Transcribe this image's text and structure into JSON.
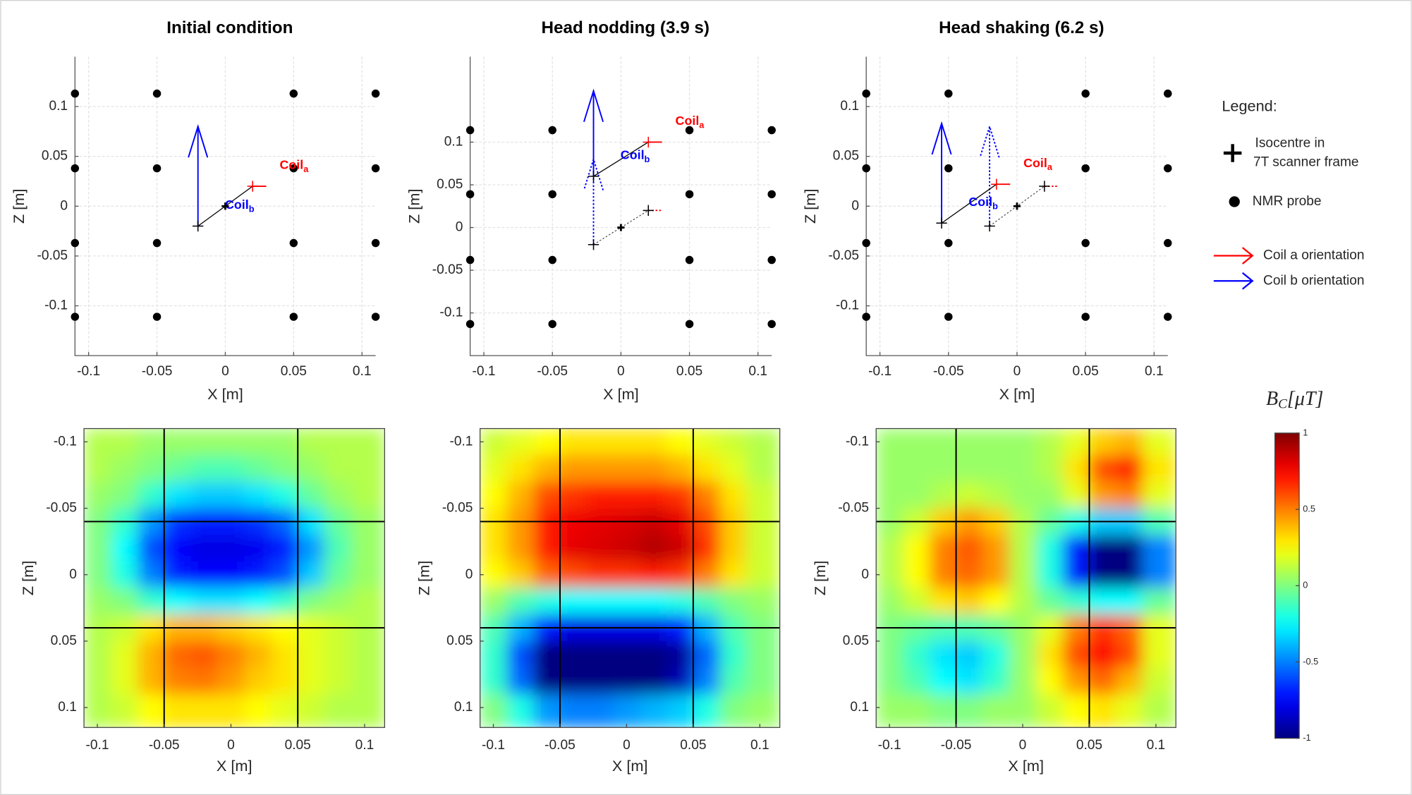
{
  "chart_data": [
    {
      "type": "scatter",
      "title": "Initial condition",
      "xlabel": "X [m]",
      "ylabel": "Z [m]",
      "xlim": [
        -0.11,
        0.11
      ],
      "ylim": [
        -0.15,
        0.15
      ],
      "xticks": [
        -0.1,
        -0.05,
        0,
        0.05,
        0.1
      ],
      "yticks": [
        -0.1,
        -0.05,
        0,
        0.05,
        0.1
      ],
      "grid": true,
      "probes": {
        "color": "#000000",
        "x": [
          -0.11,
          -0.05,
          0.05,
          0.11,
          -0.11,
          -0.05,
          0.05,
          0.11,
          -0.11,
          -0.05,
          0.05,
          0.11,
          -0.11,
          -0.05,
          0.05,
          0.11
        ],
        "y": [
          0.113,
          0.113,
          0.113,
          0.113,
          0.038,
          0.038,
          0.038,
          0.038,
          -0.037,
          -0.037,
          -0.037,
          -0.037,
          -0.111,
          -0.111,
          -0.111,
          -0.111
        ]
      },
      "isocentre": {
        "color": "#000000",
        "x": 0,
        "y": 0
      },
      "coils": [
        {
          "label": "Coil",
          "sub": "a",
          "color": "#ff0000",
          "marker_color": "#ff0000",
          "arrowhead": false,
          "x": 0.02,
          "y": 0.02,
          "dx": 0.01,
          "dy": 0
        },
        {
          "label": "Coil",
          "sub": "b",
          "color": "#0000ff",
          "marker_color": "#000000",
          "arrowhead": true,
          "x": -0.02,
          "y": -0.02,
          "dx": 0,
          "dy": 0.1
        }
      ],
      "previous": []
    },
    {
      "type": "scatter",
      "title": "Head nodding (3.9 s)",
      "xlabel": "X [m]",
      "ylabel": "Z [m]",
      "xlim": [
        -0.11,
        0.11
      ],
      "ylim": [
        -0.15,
        0.2
      ],
      "xticks": [
        -0.1,
        -0.05,
        0,
        0.05,
        0.1
      ],
      "yticks": [
        -0.1,
        -0.05,
        0,
        0.05,
        0.1
      ],
      "grid": true,
      "probes": {
        "color": "#000000",
        "x": [
          -0.11,
          -0.05,
          0.05,
          0.11,
          -0.11,
          -0.05,
          0.05,
          0.11,
          -0.11,
          -0.05,
          0.05,
          0.11,
          -0.11,
          -0.05,
          0.05,
          0.11
        ],
        "y": [
          0.114,
          0.114,
          0.114,
          0.114,
          0.039,
          0.039,
          0.039,
          0.039,
          -0.038,
          -0.038,
          -0.038,
          -0.038,
          -0.113,
          -0.113,
          -0.113,
          -0.113
        ]
      },
      "isocentre": {
        "color": "#000000",
        "x": 0,
        "y": 0
      },
      "coils": [
        {
          "label": "Coil",
          "sub": "a",
          "color": "#ff0000",
          "marker_color": "#ff0000",
          "arrowhead": false,
          "x": 0.02,
          "y": 0.1,
          "dx": 0.01,
          "dy": 0
        },
        {
          "label": "Coil",
          "sub": "b",
          "color": "#0000ff",
          "marker_color": "#000000",
          "arrowhead": true,
          "x": -0.02,
          "y": 0.06,
          "dx": 0,
          "dy": 0.1
        }
      ],
      "previous": [
        {
          "color": "#ff0000",
          "marker_color": "#000000",
          "arrowhead": false,
          "x": 0.02,
          "y": 0.02,
          "dx": 0.01,
          "dy": 0
        },
        {
          "color": "#0000ff",
          "marker_color": "#000000",
          "arrowhead": true,
          "x": -0.02,
          "y": -0.02,
          "dx": 0,
          "dy": 0.1
        }
      ]
    },
    {
      "type": "scatter",
      "title": "Head shaking (6.2 s)",
      "xlabel": "X [m]",
      "ylabel": "Z [m]",
      "xlim": [
        -0.11,
        0.11
      ],
      "ylim": [
        -0.15,
        0.15
      ],
      "xticks": [
        -0.1,
        -0.05,
        0,
        0.05,
        0.1
      ],
      "yticks": [
        -0.1,
        -0.05,
        0,
        0.05,
        0.1
      ],
      "grid": true,
      "probes": {
        "color": "#000000",
        "x": [
          -0.11,
          -0.05,
          0.05,
          0.11,
          -0.11,
          -0.05,
          0.05,
          0.11,
          -0.11,
          -0.05,
          0.05,
          0.11,
          -0.11,
          -0.05,
          0.05,
          0.11
        ],
        "y": [
          0.113,
          0.113,
          0.113,
          0.113,
          0.038,
          0.038,
          0.038,
          0.038,
          -0.037,
          -0.037,
          -0.037,
          -0.037,
          -0.111,
          -0.111,
          -0.111,
          -0.111
        ]
      },
      "isocentre": {
        "color": "#000000",
        "x": 0,
        "y": 0
      },
      "coils": [
        {
          "label": "Coil",
          "sub": "a",
          "color": "#ff0000",
          "marker_color": "#ff0000",
          "arrowhead": false,
          "x": -0.015,
          "y": 0.022,
          "dx": 0.01,
          "dy": 0
        },
        {
          "label": "Coil",
          "sub": "b",
          "color": "#0000ff",
          "marker_color": "#000000",
          "arrowhead": true,
          "x": -0.055,
          "y": -0.017,
          "dx": 0,
          "dy": 0.1
        }
      ],
      "previous": [
        {
          "color": "#ff0000",
          "marker_color": "#000000",
          "arrowhead": false,
          "x": 0.02,
          "y": 0.02,
          "dx": 0.01,
          "dy": 0
        },
        {
          "color": "#0000ff",
          "marker_color": "#000000",
          "arrowhead": true,
          "x": -0.02,
          "y": -0.02,
          "dx": 0,
          "dy": 0.1
        }
      ]
    },
    {
      "type": "heatmap",
      "xlabel": "X [m]",
      "ylabel": "Z [m]",
      "y_reversed": true,
      "xlim": [
        -0.11,
        0.115
      ],
      "ylim": [
        -0.11,
        0.115
      ],
      "xticks": [
        -0.1,
        -0.05,
        0,
        0.05,
        0.1
      ],
      "yticks": [
        -0.1,
        -0.05,
        0,
        0.05,
        0.1
      ],
      "lines": {
        "color": "#000000",
        "x": [
          -0.05,
          0.05
        ],
        "y": [
          -0.04,
          0.04
        ]
      },
      "x": [
        -0.1,
        -0.08,
        -0.06,
        -0.04,
        -0.02,
        0,
        0.02,
        0.04,
        0.06,
        0.08,
        0.1
      ],
      "y": [
        -0.1,
        -0.08,
        -0.06,
        -0.04,
        -0.02,
        0,
        0.02,
        0.04,
        0.06,
        0.08,
        0.1
      ],
      "z": [
        [
          0.1,
          0.1,
          0.05,
          0.05,
          0.05,
          0.05,
          0.05,
          0.05,
          0.1,
          0.1,
          0.1
        ],
        [
          0.1,
          0.05,
          0,
          -0.05,
          -0.1,
          -0.1,
          -0.05,
          0,
          0.05,
          0.1,
          0.1
        ],
        [
          0.05,
          0,
          -0.15,
          -0.3,
          -0.35,
          -0.35,
          -0.3,
          -0.2,
          -0.05,
          0.05,
          0.1
        ],
        [
          0,
          -0.15,
          -0.45,
          -0.65,
          -0.7,
          -0.7,
          -0.65,
          -0.55,
          -0.3,
          -0.05,
          0.05
        ],
        [
          0,
          -0.25,
          -0.6,
          -0.75,
          -0.8,
          -0.8,
          -0.78,
          -0.7,
          -0.45,
          -0.1,
          0.05
        ],
        [
          0,
          -0.2,
          -0.5,
          -0.7,
          -0.75,
          -0.75,
          -0.7,
          -0.6,
          -0.35,
          -0.05,
          0.05
        ],
        [
          0.05,
          0,
          -0.15,
          -0.25,
          -0.3,
          -0.3,
          -0.25,
          -0.15,
          0,
          0.05,
          0.1
        ],
        [
          0.1,
          0.15,
          0.3,
          0.4,
          0.4,
          0.35,
          0.3,
          0.25,
          0.2,
          0.15,
          0.1
        ],
        [
          0.1,
          0.2,
          0.4,
          0.55,
          0.58,
          0.5,
          0.4,
          0.3,
          0.2,
          0.15,
          0.1
        ],
        [
          0.1,
          0.2,
          0.4,
          0.5,
          0.52,
          0.45,
          0.35,
          0.3,
          0.2,
          0.15,
          0.1
        ],
        [
          0.1,
          0.15,
          0.25,
          0.3,
          0.3,
          0.3,
          0.25,
          0.2,
          0.15,
          0.1,
          0.1
        ]
      ]
    },
    {
      "type": "heatmap",
      "xlabel": "X [m]",
      "ylabel": "Z [m]",
      "y_reversed": true,
      "xlim": [
        -0.11,
        0.115
      ],
      "ylim": [
        -0.11,
        0.115
      ],
      "xticks": [
        -0.1,
        -0.05,
        0,
        0.05,
        0.1
      ],
      "yticks": [
        -0.1,
        -0.05,
        0,
        0.05,
        0.1
      ],
      "lines": {
        "color": "#000000",
        "x": [
          -0.05,
          0.05
        ],
        "y": [
          -0.04,
          0.04
        ]
      },
      "x": [
        -0.1,
        -0.08,
        -0.06,
        -0.04,
        -0.02,
        0,
        0.02,
        0.04,
        0.06,
        0.08,
        0.1
      ],
      "y": [
        -0.1,
        -0.08,
        -0.06,
        -0.04,
        -0.02,
        0,
        0.02,
        0.04,
        0.06,
        0.08,
        0.1
      ],
      "z": [
        [
          0.15,
          0.2,
          0.25,
          0.3,
          0.3,
          0.3,
          0.3,
          0.25,
          0.2,
          0.15,
          0.1
        ],
        [
          0.2,
          0.3,
          0.4,
          0.45,
          0.45,
          0.45,
          0.45,
          0.4,
          0.3,
          0.2,
          0.1
        ],
        [
          0.25,
          0.4,
          0.6,
          0.65,
          0.7,
          0.7,
          0.7,
          0.65,
          0.5,
          0.3,
          0.15
        ],
        [
          0.3,
          0.45,
          0.7,
          0.78,
          0.8,
          0.82,
          0.85,
          0.8,
          0.6,
          0.35,
          0.15
        ],
        [
          0.3,
          0.45,
          0.7,
          0.8,
          0.82,
          0.85,
          0.9,
          0.85,
          0.65,
          0.35,
          0.15
        ],
        [
          0.25,
          0.35,
          0.55,
          0.6,
          0.65,
          0.65,
          0.7,
          0.65,
          0.5,
          0.3,
          0.15
        ],
        [
          0.05,
          -0.1,
          -0.2,
          -0.25,
          -0.25,
          -0.25,
          -0.25,
          -0.2,
          -0.1,
          0,
          0.05
        ],
        [
          -0.1,
          -0.4,
          -0.7,
          -0.8,
          -0.8,
          -0.8,
          -0.8,
          -0.7,
          -0.4,
          -0.1,
          0
        ],
        [
          -0.15,
          -0.6,
          -1,
          -1,
          -1,
          -1,
          -1,
          -0.95,
          -0.55,
          -0.15,
          0
        ],
        [
          -0.15,
          -0.55,
          -1,
          -1,
          -1,
          -1,
          -1,
          -0.9,
          -0.5,
          -0.1,
          0
        ],
        [
          0,
          -0.2,
          -0.45,
          -0.5,
          -0.5,
          -0.45,
          -0.4,
          -0.35,
          -0.2,
          0,
          0.05
        ]
      ]
    },
    {
      "type": "heatmap",
      "xlabel": "X [m]",
      "ylabel": "Z [m]",
      "y_reversed": true,
      "xlim": [
        -0.11,
        0.115
      ],
      "ylim": [
        -0.11,
        0.115
      ],
      "xticks": [
        -0.1,
        -0.05,
        0,
        0.05,
        0.1
      ],
      "yticks": [
        -0.1,
        -0.05,
        0,
        0.05,
        0.1
      ],
      "lines": {
        "color": "#000000",
        "x": [
          -0.05,
          0.05
        ],
        "y": [
          -0.04,
          0.04
        ]
      },
      "x": [
        -0.1,
        -0.08,
        -0.06,
        -0.04,
        -0.02,
        0,
        0.02,
        0.04,
        0.06,
        0.08,
        0.1
      ],
      "y": [
        -0.1,
        -0.08,
        -0.06,
        -0.04,
        -0.02,
        0,
        0.02,
        0.04,
        0.06,
        0.08,
        0.1
      ],
      "z": [
        [
          0.05,
          0.05,
          0.05,
          0.05,
          0.05,
          0.05,
          0.1,
          0.2,
          0.35,
          0.4,
          0.2
        ],
        [
          0.05,
          0.05,
          0.05,
          0.05,
          0.05,
          0.05,
          0.1,
          0.3,
          0.6,
          0.7,
          0.3
        ],
        [
          0.05,
          0.05,
          0.1,
          0.15,
          0.1,
          0.05,
          0.05,
          0.2,
          0.45,
          0.5,
          0.2
        ],
        [
          0.05,
          0.15,
          0.35,
          0.45,
          0.35,
          0.1,
          -0.05,
          -0.2,
          -0.35,
          -0.35,
          -0.1
        ],
        [
          0.1,
          0.25,
          0.5,
          0.58,
          0.45,
          0.1,
          -0.2,
          -0.7,
          -1,
          -1,
          -0.5
        ],
        [
          0.1,
          0.25,
          0.5,
          0.55,
          0.45,
          0.1,
          -0.2,
          -0.7,
          -1,
          -1,
          -0.5
        ],
        [
          0.05,
          0.15,
          0.3,
          0.35,
          0.25,
          0.1,
          -0.05,
          -0.15,
          -0.25,
          -0.25,
          -0.05
        ],
        [
          0,
          -0.05,
          -0.1,
          -0.1,
          -0.05,
          0.05,
          0.2,
          0.5,
          0.65,
          0.55,
          0.2
        ],
        [
          0,
          -0.15,
          -0.3,
          -0.35,
          -0.2,
          0.05,
          0.3,
          0.6,
          0.75,
          0.6,
          0.2
        ],
        [
          0,
          -0.1,
          -0.25,
          -0.3,
          -0.15,
          0.05,
          0.25,
          0.45,
          0.55,
          0.4,
          0.15
        ],
        [
          0.05,
          0.05,
          0,
          0,
          0.05,
          0.05,
          0.15,
          0.25,
          0.3,
          0.2,
          0.1
        ]
      ]
    }
  ],
  "legend": {
    "title": "Legend:",
    "entries": [
      {
        "label": [
          "Isocentre in",
          "7T scanner frame"
        ],
        "marker": "plus",
        "color": "#000000"
      },
      {
        "label": [
          "NMR probe"
        ],
        "marker": "dot",
        "color": "#000000"
      },
      {
        "label": [
          "Coil a orientation"
        ],
        "marker": "arrow",
        "color": "#ff0000"
      },
      {
        "label": [
          "Coil b orientation"
        ],
        "marker": "arrow",
        "color": "#0000ff"
      }
    ]
  },
  "colorbar": {
    "symbol": "B",
    "sub": "C",
    "unit": "[μT]",
    "colormap": "jet",
    "lim": [
      -1,
      1
    ],
    "ticks": [
      -1,
      -0.5,
      0,
      0.5,
      1
    ]
  }
}
